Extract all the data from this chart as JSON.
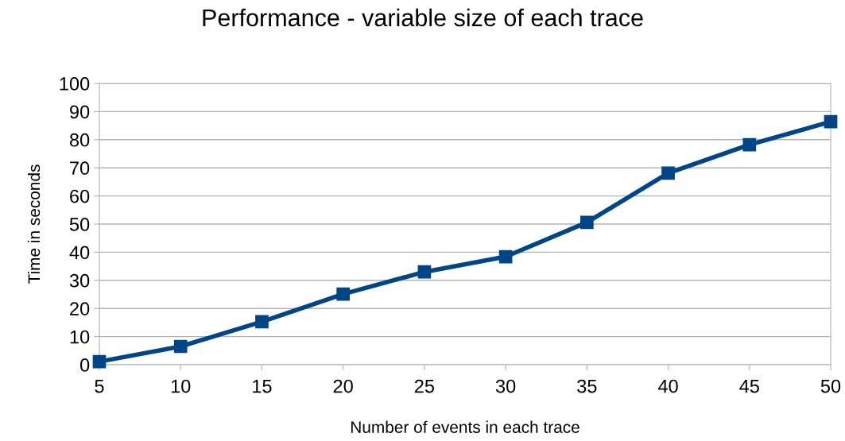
{
  "chart_data": {
    "type": "line",
    "title": "Performance - variable size of each trace",
    "xlabel": "Number of events in each trace",
    "ylabel": "Time in seconds",
    "categories": [
      "5",
      "10",
      "15",
      "20",
      "25",
      "30",
      "35",
      "40",
      "45",
      "50"
    ],
    "series": [
      {
        "color": "#004586",
        "values": [
          1.1,
          6.5,
          15.3,
          25.1,
          33.0,
          38.4,
          50.6,
          68.1,
          78.2,
          86.4
        ]
      }
    ],
    "ylim": [
      0,
      100
    ],
    "yticks": [
      0,
      10,
      20,
      30,
      40,
      50,
      60,
      70,
      80,
      90,
      100
    ],
    "grid": "y",
    "marker": "square",
    "line_style": "solid",
    "legend": false
  }
}
